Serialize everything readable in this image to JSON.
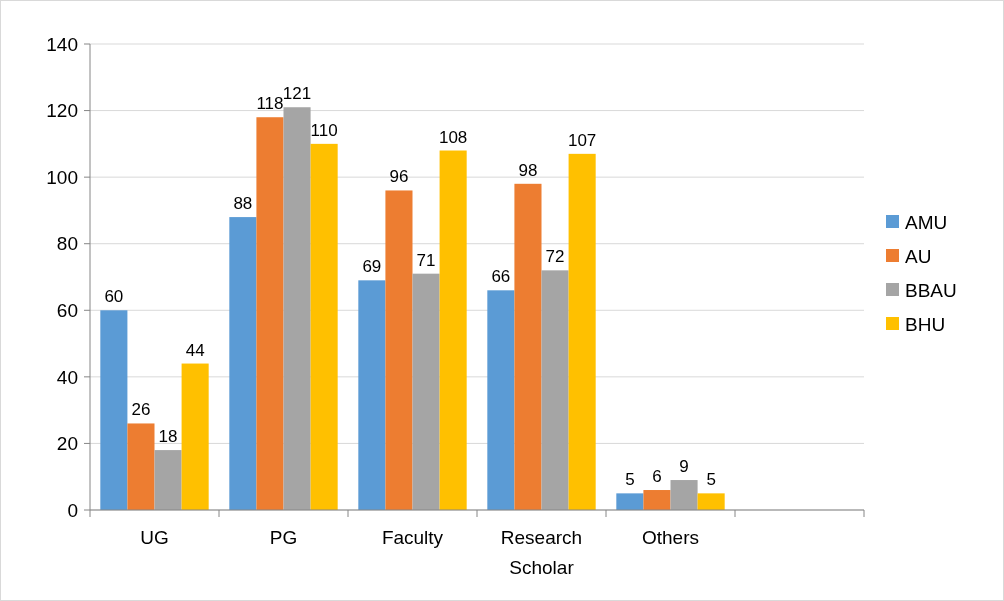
{
  "chart_data": {
    "type": "bar",
    "categories": [
      "UG",
      "PG",
      "Faculty",
      "Research Scholar",
      "Others",
      null
    ],
    "series": [
      {
        "name": "AMU",
        "color": "#5b9bd5",
        "values": [
          60,
          88,
          69,
          66,
          5,
          null
        ]
      },
      {
        "name": "AU",
        "color": "#ed7d31",
        "values": [
          26,
          118,
          96,
          98,
          6,
          null
        ]
      },
      {
        "name": "BBAU",
        "color": "#a5a5a5",
        "values": [
          18,
          121,
          71,
          72,
          9,
          null
        ]
      },
      {
        "name": "BHU",
        "color": "#ffc000",
        "values": [
          44,
          110,
          108,
          107,
          5,
          null
        ]
      }
    ],
    "ylim": [
      0,
      140
    ],
    "yticks": [
      0,
      20,
      40,
      60,
      80,
      100,
      120,
      140
    ],
    "grid": "y",
    "legend": "right",
    "data_labels": true
  }
}
